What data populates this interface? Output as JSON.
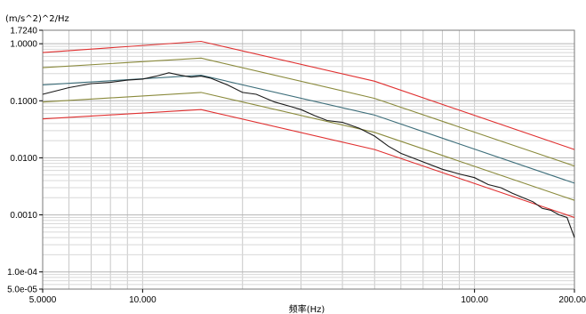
{
  "chart_data": {
    "type": "line",
    "title": "",
    "ylabel": "(m/s^2)^2/Hz",
    "xlabel": "频率(Hz)",
    "x_scale": "log",
    "y_scale": "log",
    "xlim": [
      5,
      200
    ],
    "ylim": [
      5e-05,
      1.724
    ],
    "grid": true,
    "x_tick_labels": [
      {
        "value": 5,
        "label": "5.0000"
      },
      {
        "value": 10,
        "label": "10.000"
      },
      {
        "value": 100,
        "label": "100.00"
      },
      {
        "value": 200,
        "label": "200.00"
      }
    ],
    "y_tick_labels": [
      {
        "value": 1.724,
        "label": "1.7240"
      },
      {
        "value": 1.0,
        "label": "1.0000"
      },
      {
        "value": 0.1,
        "label": "0.1000"
      },
      {
        "value": 0.01,
        "label": "0.0100"
      },
      {
        "value": 0.001,
        "label": "0.0010"
      },
      {
        "value": 0.0001,
        "label": "1.0e-04"
      },
      {
        "value": 5e-05,
        "label": "5.0e-05"
      }
    ],
    "series": [
      {
        "color": "#e03030",
        "x": [
          5,
          15,
          50,
          200
        ],
        "y": [
          0.7,
          1.1,
          0.22,
          0.014
        ]
      },
      {
        "color": "#8a8a3c",
        "x": [
          5,
          15,
          50,
          200
        ],
        "y": [
          0.38,
          0.56,
          0.11,
          0.0072
        ]
      },
      {
        "color": "#3d6e7a",
        "x": [
          5,
          15,
          50,
          200
        ],
        "y": [
          0.19,
          0.28,
          0.056,
          0.0036
        ]
      },
      {
        "color": "#8a8a3c",
        "x": [
          5,
          15,
          50,
          200
        ],
        "y": [
          0.095,
          0.14,
          0.028,
          0.0018
        ]
      },
      {
        "color": "#e03030",
        "x": [
          5,
          15,
          50,
          200
        ],
        "y": [
          0.048,
          0.07,
          0.014,
          0.0009
        ]
      },
      {
        "color": "#1a1a1a",
        "x": [
          5,
          6,
          7,
          8,
          9,
          10,
          11,
          12,
          13,
          14,
          15,
          16,
          18,
          20,
          22,
          25,
          28,
          30,
          33,
          36,
          40,
          45,
          50,
          55,
          60,
          70,
          80,
          90,
          100,
          110,
          120,
          130,
          140,
          150,
          160,
          170,
          180,
          190,
          200
        ],
        "y": [
          0.13,
          0.17,
          0.2,
          0.21,
          0.23,
          0.24,
          0.27,
          0.31,
          0.28,
          0.26,
          0.27,
          0.25,
          0.19,
          0.14,
          0.13,
          0.095,
          0.079,
          0.07,
          0.055,
          0.045,
          0.042,
          0.033,
          0.024,
          0.016,
          0.012,
          0.0085,
          0.0063,
          0.0052,
          0.0045,
          0.0034,
          0.003,
          0.0024,
          0.002,
          0.0017,
          0.0013,
          0.0012,
          0.001,
          0.0009,
          0.0004
        ]
      }
    ]
  }
}
